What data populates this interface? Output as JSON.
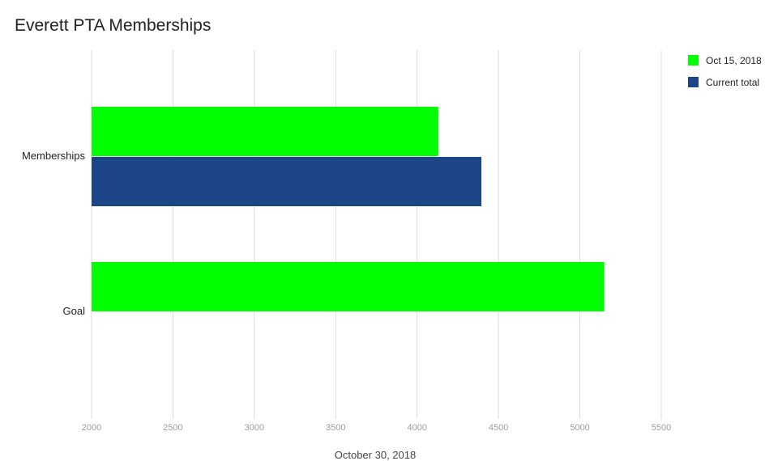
{
  "chart_data": {
    "type": "bar",
    "orientation": "horizontal",
    "title": "Everett PTA Memberships",
    "xlabel": "October 30, 2018",
    "ylabel": "",
    "xlim": [
      2000,
      5500
    ],
    "x_ticks": [
      "2000",
      "2500",
      "3000",
      "3500",
      "4000",
      "4500",
      "5000",
      "5500"
    ],
    "grid": true,
    "legend_position": "top-right",
    "categories": [
      "Memberships",
      "Goal"
    ],
    "series": [
      {
        "name": "Oct 15, 2018",
        "color": "#00ff00",
        "values": [
          4130,
          5150
        ]
      },
      {
        "name": "Current total",
        "color": "#1c4587",
        "values": [
          4395,
          null
        ]
      }
    ]
  }
}
